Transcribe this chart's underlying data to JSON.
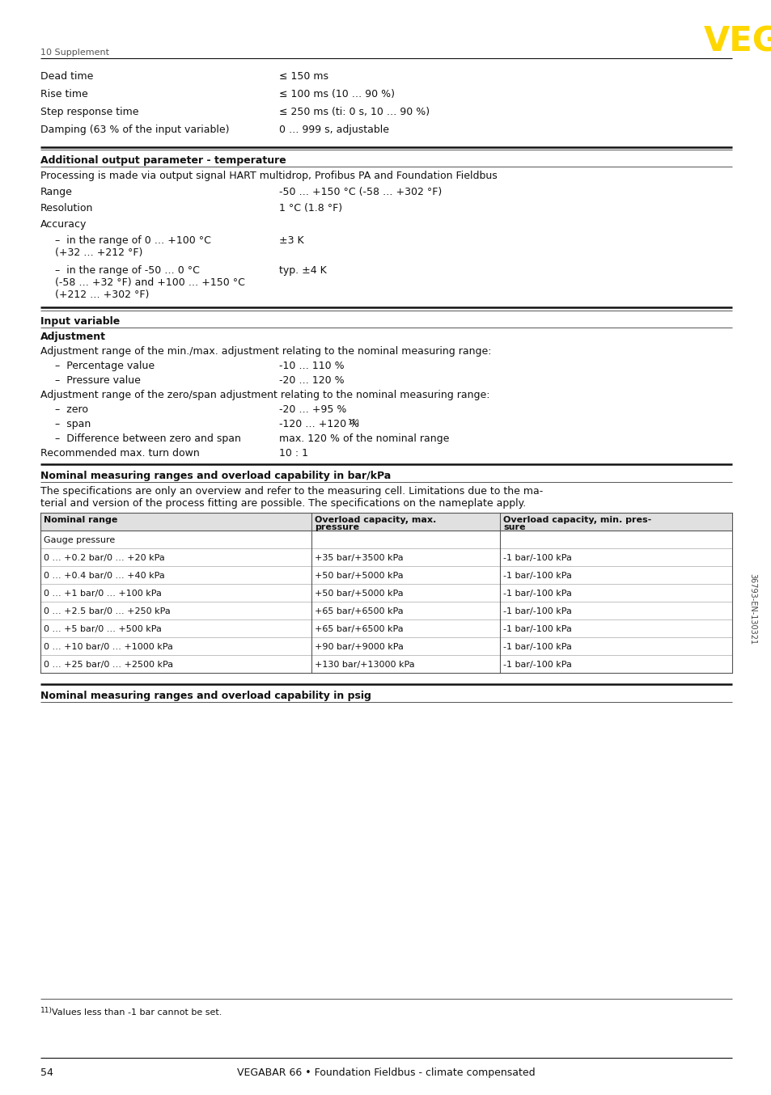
{
  "page_num": "54",
  "footer_text": "VEGABAR 66 • Foundation Fieldbus - climate compensated",
  "header_section": "10 Supplement",
  "vega_color": "#FFD700",
  "bg_color": "#ffffff",
  "text_color": "#1a1a1a",
  "table_headers": [
    "Nominal range",
    "Overload capacity, max.\npressure",
    "Overload capacity, min. pres-\nsure"
  ],
  "table_rows": [
    {
      "cells": [
        "Gauge pressure",
        "",
        ""
      ],
      "is_subheader": false
    },
    {
      "cells": [
        "0 … +0.2 bar/0 … +20 kPa",
        "+35 bar/+3500 kPa",
        "-1 bar/-100 kPa"
      ],
      "is_subheader": false
    },
    {
      "cells": [
        "0 … +0.4 bar/0 … +40 kPa",
        "+50 bar/+5000 kPa",
        "-1 bar/-100 kPa"
      ],
      "is_subheader": false
    },
    {
      "cells": [
        "0 … +1 bar/0 … +100 kPa",
        "+50 bar/+5000 kPa",
        "-1 bar/-100 kPa"
      ],
      "is_subheader": false
    },
    {
      "cells": [
        "0 … +2.5 bar/0 … +250 kPa",
        "+65 bar/+6500 kPa",
        "-1 bar/-100 kPa"
      ],
      "is_subheader": false
    },
    {
      "cells": [
        "0 … +5 bar/0 … +500 kPa",
        "+65 bar/+6500 kPa",
        "-1 bar/-100 kPa"
      ],
      "is_subheader": false
    },
    {
      "cells": [
        "0 … +10 bar/0 … +1000 kPa",
        "+90 bar/+9000 kPa",
        "-1 bar/-100 kPa"
      ],
      "is_subheader": false
    },
    {
      "cells": [
        "0 … +25 bar/0 … +2500 kPa",
        "+130 bar/+13000 kPa",
        "-1 bar/-100 kPa"
      ],
      "is_subheader": false
    }
  ],
  "bottom_section_header": "Nominal measuring ranges and overload capability in psig",
  "footnote": "11)  Values less than -1 bar cannot be set.",
  "side_text": "36793-EN-130321"
}
